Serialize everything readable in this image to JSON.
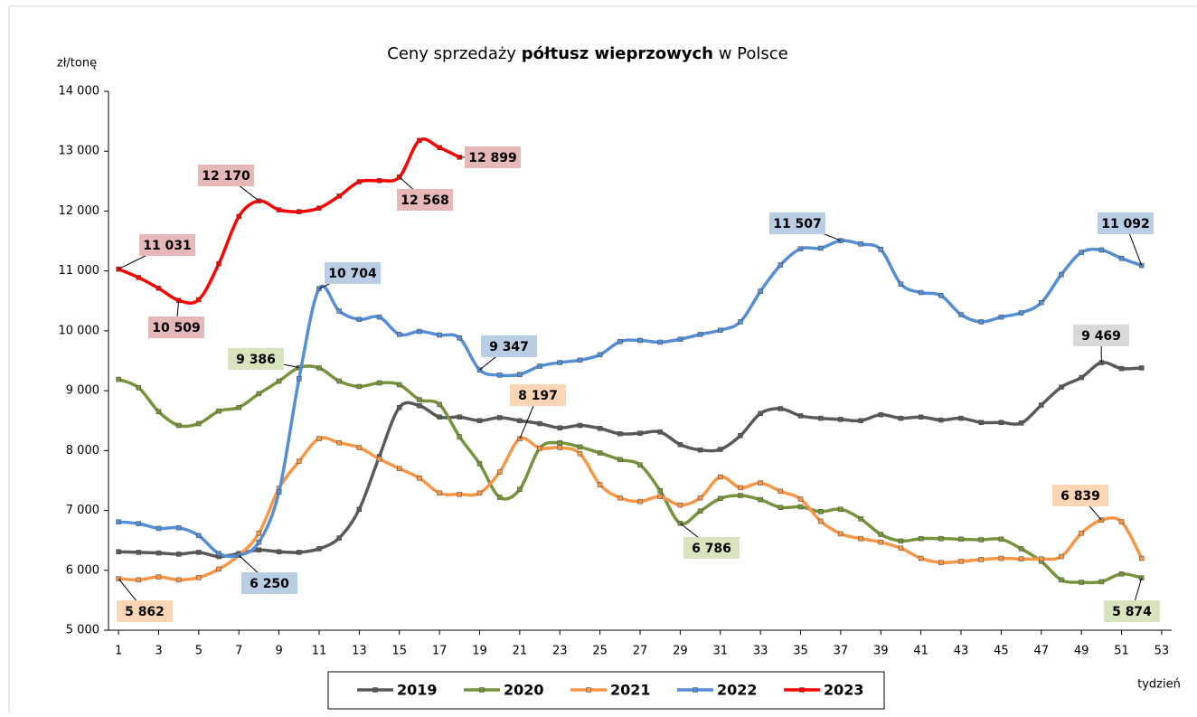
{
  "chart_data": {
    "type": "line",
    "title_parts": [
      "Ceny sprzedaży",
      "półtusz wieprzowych",
      "w Polsce"
    ],
    "ylabel": "zł/tonę",
    "xlabel": "tydzień",
    "x": [
      1,
      2,
      3,
      4,
      5,
      6,
      7,
      8,
      9,
      10,
      11,
      12,
      13,
      14,
      15,
      16,
      17,
      18,
      19,
      20,
      21,
      22,
      23,
      24,
      25,
      26,
      27,
      28,
      29,
      30,
      31,
      32,
      33,
      34,
      35,
      36,
      37,
      38,
      39,
      40,
      41,
      42,
      43,
      44,
      45,
      46,
      47,
      48,
      49,
      50,
      51,
      52
    ],
    "xlim": [
      0.5,
      53.5
    ],
    "xticks": [
      1,
      3,
      5,
      7,
      9,
      11,
      13,
      15,
      17,
      19,
      21,
      23,
      25,
      27,
      29,
      31,
      33,
      35,
      37,
      39,
      41,
      43,
      45,
      47,
      49,
      51,
      53
    ],
    "ylim": [
      5000,
      14000
    ],
    "yticks": [
      {
        "value": 5000,
        "label": "5 000"
      },
      {
        "value": 6000,
        "label": "6 000"
      },
      {
        "value": 7000,
        "label": "7 000"
      },
      {
        "value": 8000,
        "label": "8 000"
      },
      {
        "value": 9000,
        "label": "9 000"
      },
      {
        "value": 10000,
        "label": "10 000"
      },
      {
        "value": 11000,
        "label": "11 000"
      },
      {
        "value": 12000,
        "label": "12 000"
      },
      {
        "value": 13000,
        "label": "13 000"
      },
      {
        "value": 14000,
        "label": "14 000"
      }
    ],
    "series": [
      {
        "name": "2019",
        "color": "#595959",
        "label_color": "#d9d9d9",
        "values": [
          6310,
          6300,
          6290,
          6270,
          6300,
          6230,
          6280,
          6340,
          6310,
          6300,
          6360,
          6540,
          7020,
          7900,
          8720,
          8750,
          8560,
          8560,
          8500,
          8550,
          8500,
          8450,
          8380,
          8420,
          8370,
          8280,
          8290,
          8310,
          8100,
          8010,
          8020,
          8250,
          8620,
          8700,
          8580,
          8540,
          8520,
          8500,
          8600,
          8540,
          8560,
          8510,
          8540,
          8470,
          8470,
          8460,
          8760,
          9060,
          9220,
          9469,
          9370,
          9380
        ],
        "value_labels": [
          null,
          null,
          null,
          null,
          null,
          null,
          null,
          null,
          null,
          null,
          null,
          null,
          null,
          null,
          null,
          null,
          null,
          null,
          null,
          null,
          null,
          null,
          null,
          null,
          null,
          null,
          null,
          null,
          null,
          null,
          null,
          null,
          null,
          null,
          null,
          null,
          null,
          null,
          null,
          null,
          null,
          null,
          null,
          null,
          null,
          null,
          null,
          null,
          null,
          "9 469",
          null,
          null
        ]
      },
      {
        "name": "2020",
        "color": "#77933c",
        "label_color": "#d7e4bd",
        "values": [
          9190,
          9050,
          8650,
          8420,
          8450,
          8660,
          8720,
          8950,
          9160,
          9386,
          9380,
          9160,
          9070,
          9130,
          9100,
          8850,
          8770,
          8230,
          7780,
          7220,
          7350,
          8040,
          8130,
          8060,
          7960,
          7850,
          7760,
          7330,
          6786,
          6990,
          7200,
          7250,
          7180,
          7050,
          7060,
          6980,
          7020,
          6860,
          6600,
          6490,
          6530,
          6530,
          6520,
          6510,
          6520,
          6360,
          6150,
          5840,
          5800,
          5810,
          5940,
          5874
        ],
        "value_labels": [
          null,
          null,
          null,
          null,
          null,
          null,
          null,
          null,
          null,
          "9 386",
          null,
          null,
          null,
          null,
          null,
          null,
          null,
          null,
          null,
          null,
          null,
          null,
          null,
          null,
          null,
          null,
          null,
          null,
          "6 786",
          null,
          null,
          null,
          null,
          null,
          null,
          null,
          null,
          null,
          null,
          null,
          null,
          null,
          null,
          null,
          null,
          null,
          null,
          null,
          null,
          null,
          null,
          "5 874"
        ]
      },
      {
        "name": "2021",
        "color": "#f79646",
        "label_color": "#fcd5b5",
        "values": [
          5862,
          5840,
          5890,
          5840,
          5880,
          6020,
          6250,
          6620,
          7370,
          7820,
          8200,
          8130,
          8050,
          7860,
          7700,
          7540,
          7290,
          7270,
          7290,
          7640,
          8197,
          8040,
          8050,
          7950,
          7430,
          7210,
          7150,
          7230,
          7090,
          7210,
          7560,
          7380,
          7460,
          7320,
          7190,
          6820,
          6610,
          6530,
          6470,
          6370,
          6200,
          6130,
          6150,
          6180,
          6200,
          6190,
          6190,
          6230,
          6620,
          6839,
          6810,
          6200
        ],
        "value_labels": [
          "5 862",
          null,
          null,
          null,
          null,
          null,
          null,
          null,
          null,
          null,
          null,
          null,
          null,
          null,
          null,
          null,
          null,
          null,
          null,
          null,
          "8 197",
          null,
          null,
          null,
          null,
          null,
          null,
          null,
          null,
          null,
          null,
          null,
          null,
          null,
          null,
          null,
          null,
          null,
          null,
          null,
          null,
          null,
          null,
          null,
          null,
          null,
          null,
          null,
          null,
          "6 839",
          null,
          null
        ]
      },
      {
        "name": "2022",
        "color": "#558ed5",
        "label_color": "#b9cde5",
        "values": [
          6810,
          6780,
          6700,
          6710,
          6580,
          6280,
          6250,
          6470,
          7310,
          9200,
          10704,
          10330,
          10190,
          10230,
          9940,
          9990,
          9930,
          9880,
          9347,
          9260,
          9270,
          9410,
          9470,
          9510,
          9600,
          9820,
          9840,
          9810,
          9860,
          9940,
          10010,
          10150,
          10660,
          11100,
          11370,
          11380,
          11507,
          11450,
          11360,
          10780,
          10640,
          10590,
          10270,
          10150,
          10230,
          10300,
          10470,
          10940,
          11310,
          11350,
          11210,
          11092
        ],
        "value_labels": [
          null,
          null,
          null,
          null,
          null,
          null,
          "6 250",
          null,
          null,
          null,
          "10 704",
          null,
          null,
          null,
          null,
          null,
          null,
          null,
          "9 347",
          null,
          null,
          null,
          null,
          null,
          null,
          null,
          null,
          null,
          null,
          null,
          null,
          null,
          null,
          null,
          null,
          null,
          "11 507",
          null,
          null,
          null,
          null,
          null,
          null,
          null,
          null,
          null,
          null,
          null,
          null,
          null,
          null,
          "11 092"
        ]
      },
      {
        "name": "2023",
        "color": "#ff0000",
        "label_color": "#e6b9b8",
        "values": [
          11031,
          10890,
          10710,
          10509,
          10520,
          11120,
          11910,
          12170,
          12020,
          11990,
          12050,
          12250,
          12490,
          12510,
          12568,
          13180,
          13060,
          12899,
          null,
          null,
          null,
          null,
          null,
          null,
          null,
          null,
          null,
          null,
          null,
          null,
          null,
          null,
          null,
          null,
          null,
          null,
          null,
          null,
          null,
          null,
          null,
          null,
          null,
          null,
          null,
          null,
          null,
          null,
          null,
          null,
          null,
          null
        ],
        "value_labels": [
          "11 031",
          null,
          null,
          "10 509",
          null,
          null,
          null,
          "12 170",
          null,
          null,
          null,
          null,
          null,
          null,
          "12 568",
          null,
          null,
          "12 899",
          null,
          null,
          null,
          null,
          null,
          null,
          null,
          null,
          null,
          null,
          null,
          null,
          null,
          null,
          null,
          null,
          null,
          null,
          null,
          null,
          null,
          null,
          null,
          null,
          null,
          null,
          null,
          null,
          null,
          null,
          null,
          null,
          null,
          null
        ]
      }
    ]
  }
}
